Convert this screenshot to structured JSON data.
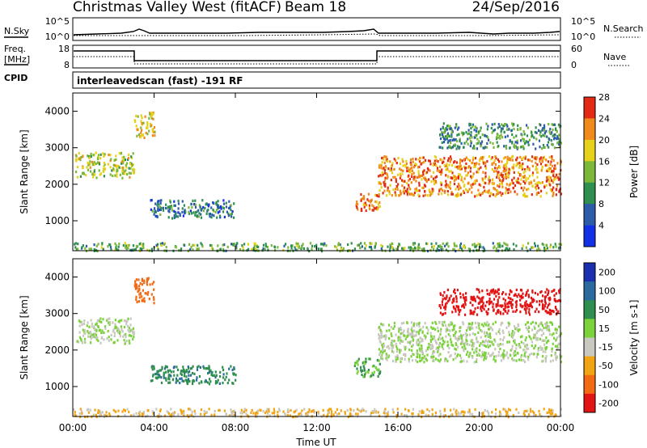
{
  "header": {
    "title": "Christmas Valley West (fitACF)",
    "beam": "Beam 18",
    "date": "24/Sep/2016"
  },
  "strips": {
    "nsky": {
      "label": "N.Sky",
      "tick_top": "10^5",
      "tick_bottom": "10^0"
    },
    "nsearch": {
      "label": "N.Search",
      "tick_top": "10^5",
      "tick_bottom": "10^0"
    },
    "freq": {
      "label_line1": "Freq.",
      "label_line2": "[MHz]",
      "tick_top": "18",
      "tick_bottom": "8"
    },
    "nave": {
      "label": "Nave",
      "tick_top": "60",
      "tick_bottom": "0"
    },
    "cpid": {
      "label": "CPID",
      "value": "interleavedscan (fast) -191 RF"
    }
  },
  "chart_data": [
    {
      "type": "heatmap",
      "title": "",
      "ylabel": "Slant Range [km]",
      "xlabel": "",
      "x_ticks": [
        "00:00",
        "04:00",
        "08:00",
        "12:00",
        "16:00",
        "20:00",
        "00:00"
      ],
      "xlim_hours": [
        0,
        24
      ],
      "y_ticks": [
        "1000",
        "2000",
        "3000",
        "4000"
      ],
      "ylim": [
        180,
        4500
      ],
      "colorbar": {
        "label": "Power [dB]",
        "ticks": [
          "4",
          "8",
          "12",
          "16",
          "20",
          "24",
          "28"
        ],
        "colors": [
          "#1230e6",
          "#2c5ca8",
          "#2f8f4e",
          "#7bb83a",
          "#e6d21a",
          "#f08a1a",
          "#e22a14"
        ]
      },
      "echo_regions": [
        {
          "name": "early-high-band",
          "t_hours": [
            0.1,
            3.0
          ],
          "range_km": [
            2200,
            2900
          ],
          "power_db": 18
        },
        {
          "name": "morning-arc",
          "t_hours": [
            3.0,
            4.0
          ],
          "range_km": [
            3300,
            4000
          ],
          "power_db": 20
        },
        {
          "name": "daytime-patch",
          "t_hours": [
            3.8,
            8.0
          ],
          "range_km": [
            1100,
            1600
          ],
          "power_db": 10
        },
        {
          "name": "ground-scatter",
          "t_hours": [
            0.0,
            24.0
          ],
          "range_km": [
            200,
            420
          ],
          "power_db": 14
        },
        {
          "name": "pre-dusk-patch",
          "t_hours": [
            13.8,
            15.1
          ],
          "range_km": [
            1300,
            1800
          ],
          "power_db": 26
        },
        {
          "name": "evening-band",
          "t_hours": [
            15.0,
            24.0
          ],
          "range_km": [
            1700,
            2800
          ],
          "power_db": 24
        },
        {
          "name": "late-high-echoes",
          "t_hours": [
            18.0,
            24.0
          ],
          "range_km": [
            3000,
            3700
          ],
          "power_db": 12
        }
      ]
    },
    {
      "type": "heatmap",
      "title": "",
      "ylabel": "Slant Range [km]",
      "xlabel": "Time UT",
      "x_ticks": [
        "00:00",
        "04:00",
        "08:00",
        "12:00",
        "16:00",
        "20:00",
        "00:00"
      ],
      "xlim_hours": [
        0,
        24
      ],
      "y_ticks": [
        "1000",
        "2000",
        "3000",
        "4000"
      ],
      "ylim": [
        180,
        4500
      ],
      "colorbar": {
        "label": "Velocity [m s-1]",
        "ticks": [
          "200",
          "100",
          "50",
          "15",
          "-15",
          "-50",
          "-100",
          "-200"
        ],
        "colors": [
          "#1a2fb0",
          "#2a6a9e",
          "#2f8f4e",
          "#7bd23a",
          "#c8c8c0",
          "#f2a514",
          "#f26a14",
          "#e21414"
        ]
      },
      "echo_regions": [
        {
          "name": "early-high-band",
          "t_hours": [
            0.1,
            3.0
          ],
          "range_km": [
            2200,
            2900
          ],
          "velocity": 0
        },
        {
          "name": "morning-arc",
          "t_hours": [
            3.0,
            4.0
          ],
          "range_km": [
            3300,
            4000
          ],
          "velocity": -120
        },
        {
          "name": "daytime-patch",
          "t_hours": [
            3.8,
            8.0
          ],
          "range_km": [
            1100,
            1600
          ],
          "velocity": 60
        },
        {
          "name": "ground-scatter",
          "t_hours": [
            0.0,
            24.0
          ],
          "range_km": [
            200,
            420
          ],
          "velocity": -40
        },
        {
          "name": "pre-dusk-patch",
          "t_hours": [
            13.8,
            15.1
          ],
          "range_km": [
            1300,
            1800
          ],
          "velocity": 40
        },
        {
          "name": "evening-band",
          "t_hours": [
            15.0,
            24.0
          ],
          "range_km": [
            1700,
            2800
          ],
          "velocity": 0
        },
        {
          "name": "late-high-echoes",
          "t_hours": [
            18.0,
            24.0
          ],
          "range_km": [
            3000,
            3700
          ],
          "velocity": -180
        }
      ]
    }
  ]
}
